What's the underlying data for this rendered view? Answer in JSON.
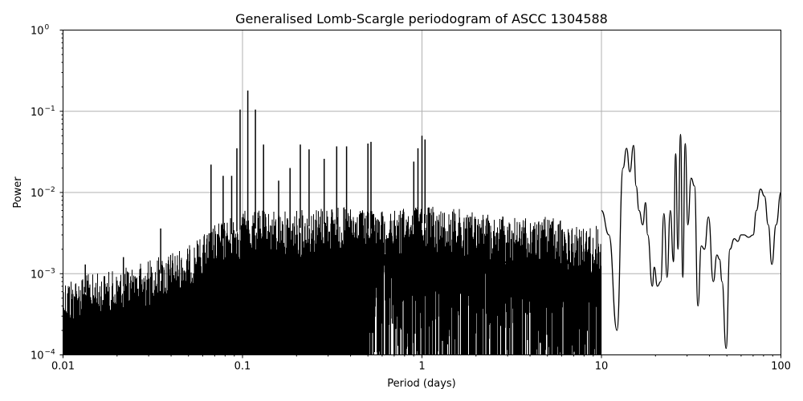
{
  "chart_data": {
    "type": "line",
    "title": "Generalised Lomb-Scargle periodogram of ASCC 1304588",
    "xlabel": "Period (days)",
    "ylabel": "Power",
    "xscale": "log",
    "yscale": "log",
    "xlim": [
      0.01,
      100
    ],
    "ylim": [
      0.0001,
      1
    ],
    "grid": true,
    "legend": null,
    "x_ticks": [
      "0.01",
      "0.1",
      "1",
      "10",
      "100"
    ],
    "y_ticks": [
      {
        "base": "10",
        "exp": "0"
      },
      {
        "base": "10",
        "exp": "−1"
      },
      {
        "base": "10",
        "exp": "−2"
      },
      {
        "base": "10",
        "exp": "−3"
      },
      {
        "base": "10",
        "exp": "−4"
      }
    ],
    "line_color": "#000000",
    "grid_color": "#b0b0b0",
    "noise_envelope": {
      "description": "Dense aliased forest of peaks from 0.01 to ~10 days; upper envelope of noise floor",
      "period": [
        0.01,
        0.02,
        0.03,
        0.05,
        0.07,
        0.1,
        0.2,
        0.3,
        0.5,
        0.7,
        1.0,
        2.0,
        3.0,
        5.0,
        8.0,
        10.0
      ],
      "power": [
        0.0009,
        0.0011,
        0.0015,
        0.0022,
        0.004,
        0.006,
        0.006,
        0.007,
        0.006,
        0.006,
        0.007,
        0.006,
        0.005,
        0.005,
        0.004,
        0.004
      ]
    },
    "peaks": [
      {
        "period": 0.0133,
        "power": 0.0013
      },
      {
        "period": 0.0217,
        "power": 0.0016
      },
      {
        "period": 0.035,
        "power": 0.0036
      },
      {
        "period": 0.0668,
        "power": 0.022
      },
      {
        "period": 0.078,
        "power": 0.016
      },
      {
        "period": 0.087,
        "power": 0.016
      },
      {
        "period": 0.093,
        "power": 0.035
      },
      {
        "period": 0.097,
        "power": 0.105
      },
      {
        "period": 0.107,
        "power": 0.18
      },
      {
        "period": 0.118,
        "power": 0.105
      },
      {
        "period": 0.131,
        "power": 0.039
      },
      {
        "period": 0.159,
        "power": 0.014
      },
      {
        "period": 0.184,
        "power": 0.02
      },
      {
        "period": 0.21,
        "power": 0.039
      },
      {
        "period": 0.235,
        "power": 0.034
      },
      {
        "period": 0.285,
        "power": 0.026
      },
      {
        "period": 0.335,
        "power": 0.037
      },
      {
        "period": 0.38,
        "power": 0.037
      },
      {
        "period": 0.5,
        "power": 0.04
      },
      {
        "period": 0.52,
        "power": 0.042
      },
      {
        "period": 0.9,
        "power": 0.024
      },
      {
        "period": 0.95,
        "power": 0.035
      },
      {
        "period": 1.0,
        "power": 0.05
      },
      {
        "period": 1.04,
        "power": 0.045
      }
    ],
    "smooth_curve": {
      "description": "Resolved curve at long periods (10-100 days)",
      "period": [
        10.0,
        11.0,
        12.2,
        13.2,
        13.8,
        14.4,
        15.1,
        15.6,
        16.2,
        17.0,
        17.6,
        18.1,
        19.2,
        19.7,
        20.5,
        21.4,
        22.3,
        23.2,
        24.2,
        25.2,
        25.9,
        26.7,
        27.6,
        28.4,
        29.3,
        30.3,
        31.6,
        33.0,
        34.5,
        36.0,
        37.5,
        39.5,
        42.0,
        44.0,
        45.5,
        47.0,
        49.5,
        52.0,
        55.0,
        57.5,
        60.0,
        62.5,
        66.0,
        70.0,
        73.0,
        77.0,
        81.0,
        85.0,
        89.0,
        94.0,
        100.0
      ],
      "power": [
        0.006,
        0.003,
        0.0002,
        0.02,
        0.035,
        0.018,
        0.038,
        0.012,
        0.006,
        0.004,
        0.0075,
        0.003,
        0.0007,
        0.0012,
        0.0007,
        0.0008,
        0.0055,
        0.0009,
        0.006,
        0.0014,
        0.03,
        0.002,
        0.052,
        0.0009,
        0.04,
        0.004,
        0.015,
        0.012,
        0.0004,
        0.0022,
        0.002,
        0.005,
        0.0008,
        0.0017,
        0.0015,
        0.0008,
        0.00012,
        0.002,
        0.0027,
        0.0025,
        0.003,
        0.003,
        0.0028,
        0.003,
        0.006,
        0.011,
        0.009,
        0.004,
        0.0013,
        0.004,
        0.01
      ]
    }
  }
}
